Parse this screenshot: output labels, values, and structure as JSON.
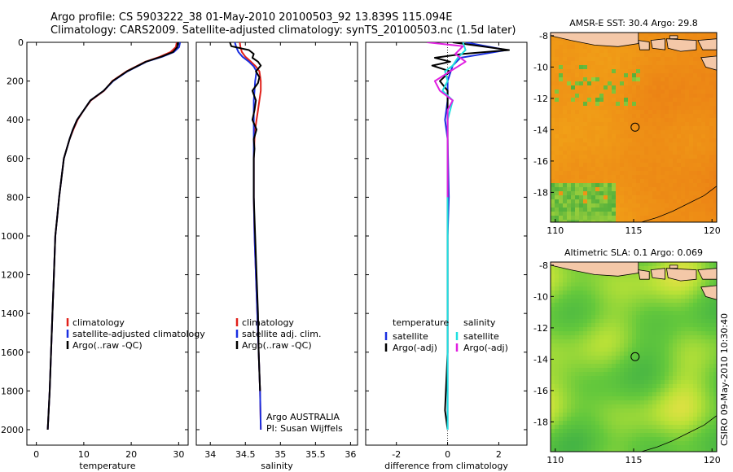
{
  "header": {
    "line1": "Argo profile: CS 5903222_38 01-May-2010 20100503_92 13.839S 115.094E",
    "line2": "Climatology: CARS2009. Satellite-adjusted climatology: synTS_20100503.nc (1.5d later)"
  },
  "credit": "CSIRO 09-May-2010 10:30:40",
  "colors": {
    "red": "#e0201a",
    "blue": "#1a2fe0",
    "black": "#000000",
    "cyan": "#20e0e0",
    "magenta": "#e020e0"
  },
  "chart_data": [
    {
      "type": "line",
      "name": "temperature",
      "xlabel": "temperature",
      "ylabel": "",
      "xlim": [
        -2,
        32
      ],
      "ylim": [
        2080,
        0
      ],
      "xticks": [
        0,
        10,
        20,
        30
      ],
      "yticks": [
        0,
        200,
        400,
        600,
        800,
        1000,
        1200,
        1400,
        1600,
        1800,
        2000
      ],
      "legend": [
        "climatology",
        "satellite-adjusted climatology",
        "Argo(..raw -QC)"
      ],
      "series": [
        {
          "name": "climatology",
          "color": "red",
          "x": [
            29.6,
            29.4,
            28.3,
            26,
            23,
            19,
            16,
            14.3,
            11.5,
            10,
            8.7,
            7.8,
            7,
            6.4,
            5.8,
            5.3,
            4.8,
            4.4,
            4,
            3.7,
            3.4,
            3.1,
            2.8,
            2.6,
            2.4
          ],
          "y": [
            0,
            25,
            50,
            75,
            100,
            150,
            200,
            250,
            300,
            350,
            400,
            450,
            500,
            550,
            600,
            700,
            800,
            900,
            1000,
            1200,
            1400,
            1600,
            1800,
            1900,
            2000
          ]
        },
        {
          "name": "satellite-adjusted climatology",
          "color": "blue",
          "x": [
            30.3,
            30.1,
            29,
            26.5,
            23.2,
            19.2,
            16.2,
            14.2,
            11.4,
            10,
            8.6,
            7.7,
            7,
            6.4,
            5.8,
            5.3,
            4.8,
            4.4,
            4,
            3.7,
            3.4,
            3.1,
            2.8,
            2.6,
            2.4
          ],
          "y": [
            0,
            25,
            50,
            75,
            100,
            150,
            200,
            250,
            300,
            350,
            400,
            450,
            500,
            550,
            600,
            700,
            800,
            900,
            1000,
            1200,
            1400,
            1600,
            1800,
            1900,
            2000
          ]
        },
        {
          "name": "Argo(..raw -QC)",
          "color": "black",
          "x": [
            29.8,
            29.7,
            28.8,
            26.3,
            23.1,
            19.1,
            16.1,
            14.2,
            11.4,
            10,
            8.6,
            7.7,
            7,
            6.4,
            5.8,
            5.3,
            4.8,
            4.4,
            4,
            3.7,
            3.4,
            3.1,
            2.8,
            2.6,
            2.4
          ],
          "y": [
            0,
            25,
            50,
            75,
            100,
            150,
            200,
            250,
            300,
            350,
            400,
            450,
            500,
            550,
            600,
            700,
            800,
            900,
            1000,
            1200,
            1400,
            1600,
            1800,
            1900,
            2000
          ]
        }
      ]
    },
    {
      "type": "line",
      "name": "salinity",
      "xlabel": "salinity",
      "xlim": [
        33.8,
        36.1
      ],
      "ylim": [
        2080,
        0
      ],
      "xticks": [
        34,
        34.5,
        35,
        35.5,
        36
      ],
      "legend": [
        "climatology",
        "satellite adj. clim.",
        "Argo(..raw -QC)"
      ],
      "annotation": [
        "Argo AUSTRALIA",
        "PI: Susan Wijffels"
      ],
      "series": [
        {
          "name": "climatology",
          "color": "red",
          "x": [
            34.42,
            34.43,
            34.45,
            34.5,
            34.58,
            34.65,
            34.7,
            34.72,
            34.72,
            34.7,
            34.68,
            34.66,
            34.64,
            34.63,
            34.62,
            34.62,
            34.62,
            34.63,
            34.65,
            34.67,
            34.69,
            34.71,
            34.72
          ],
          "y": [
            0,
            25,
            50,
            75,
            100,
            125,
            150,
            200,
            250,
            300,
            350,
            400,
            450,
            500,
            600,
            700,
            800,
            1000,
            1200,
            1400,
            1600,
            1800,
            2000
          ]
        },
        {
          "name": "satellite adj. clim.",
          "color": "blue",
          "x": [
            34.35,
            34.37,
            34.4,
            34.46,
            34.55,
            34.62,
            34.66,
            34.64,
            34.63,
            34.62,
            34.62,
            34.62,
            34.62,
            34.62,
            34.62,
            34.62,
            34.62,
            34.63,
            34.65,
            34.67,
            34.69,
            34.71,
            34.72
          ],
          "y": [
            0,
            25,
            50,
            75,
            100,
            125,
            150,
            200,
            250,
            300,
            350,
            400,
            450,
            500,
            600,
            700,
            800,
            1000,
            1200,
            1400,
            1600,
            1800,
            2000
          ]
        },
        {
          "name": "Argo(..raw -QC)",
          "color": "black",
          "x": [
            34.28,
            34.3,
            34.55,
            34.62,
            34.6,
            34.68,
            34.72,
            34.65,
            34.7,
            34.68,
            34.6,
            34.65,
            34.63,
            34.6,
            34.66,
            34.62,
            34.63,
            34.62,
            34.62,
            34.62,
            34.64,
            34.66,
            34.68,
            34.69,
            34.71
          ],
          "y": [
            0,
            20,
            40,
            60,
            80,
            100,
            120,
            150,
            180,
            210,
            250,
            300,
            350,
            400,
            450,
            500,
            550,
            600,
            700,
            800,
            1000,
            1200,
            1400,
            1600,
            1800
          ]
        }
      ]
    },
    {
      "type": "line",
      "name": "difference",
      "xlabel": "difference from climatology",
      "xlim": [
        -3.2,
        3.1
      ],
      "ylim": [
        2080,
        0
      ],
      "xticks": [
        -2,
        0,
        2
      ],
      "zero_line": 0,
      "legend_columns": [
        {
          "heading": "temperature",
          "entries": [
            "satellite",
            "Argo(-adj)"
          ]
        },
        {
          "heading": "salinity",
          "entries": [
            "satellite",
            "Argo(-adj)"
          ]
        }
      ],
      "series": [
        {
          "name": "temperature satellite",
          "color": "blue",
          "x": [
            0.7,
            2.3,
            1.4,
            0.5,
            0.2,
            0.1,
            0,
            0,
            -0.1,
            0,
            0.05,
            0,
            0,
            0,
            0,
            0
          ],
          "y": [
            0,
            40,
            60,
            80,
            120,
            160,
            200,
            300,
            400,
            500,
            800,
            1000,
            1200,
            1500,
            1800,
            2000
          ]
        },
        {
          "name": "temperature Argo(-adj)",
          "color": "black",
          "x": [
            0.2,
            2.4,
            0.6,
            -0.5,
            0.1,
            -0.6,
            0.1,
            -0.3,
            0,
            0,
            0,
            0,
            0,
            0,
            0,
            -0.1,
            0
          ],
          "y": [
            0,
            40,
            60,
            80,
            100,
            120,
            150,
            200,
            250,
            300,
            400,
            600,
            1000,
            1400,
            1600,
            1900,
            2000
          ]
        },
        {
          "name": "salinity satellite",
          "color": "cyan",
          "x": [
            0.6,
            0.7,
            0.4,
            0.2,
            -0.1,
            0,
            -0.2,
            0.2,
            0,
            0,
            0,
            0,
            0,
            0,
            0,
            0
          ],
          "y": [
            0,
            40,
            80,
            120,
            150,
            200,
            250,
            300,
            400,
            500,
            600,
            1000,
            1300,
            1500,
            1800,
            2000
          ]
        },
        {
          "name": "salinity Argo(-adj)",
          "color": "magenta",
          "x": [
            -0.8,
            0.6,
            0.3,
            0.7,
            0.1,
            -0.5,
            -0.3,
            0.2,
            0,
            0,
            0
          ],
          "y": [
            0,
            20,
            60,
            100,
            150,
            200,
            250,
            300,
            350,
            500,
            800
          ]
        }
      ]
    },
    {
      "type": "heatmap",
      "name": "sst_map",
      "title": "AMSR-E SST: 30.4 Argo: 29.8",
      "xlim": [
        109.7,
        120.3
      ],
      "ylim": [
        -19.9,
        -7.8
      ],
      "xticks": [
        110,
        115,
        120
      ],
      "yticks": [
        -8,
        -10,
        -12,
        -14,
        -16,
        -18
      ],
      "marker": {
        "lon": 115.094,
        "lat": -13.839
      }
    },
    {
      "type": "heatmap",
      "name": "sla_map",
      "title": "Altimetric SLA: 0.1 Argo: 0.069",
      "xlim": [
        109.7,
        120.3
      ],
      "ylim": [
        -19.9,
        -7.8
      ],
      "xticks": [
        110,
        115,
        120
      ],
      "yticks": [
        -8,
        -10,
        -12,
        -14,
        -16,
        -18
      ],
      "marker": {
        "lon": 115.094,
        "lat": -13.839
      }
    }
  ]
}
